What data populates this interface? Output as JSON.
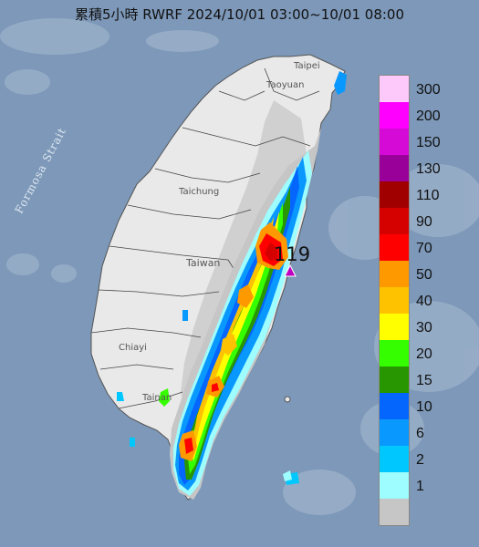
{
  "title": "累積5小時 RWRF 2024/10/01 03:00~10/01 08:00",
  "sea_label": "Formosa Strait",
  "max_value_label": "119",
  "places": [
    {
      "name": "Taipei",
      "label": "Taipei"
    },
    {
      "name": "Taoyuan",
      "label": "Taoyuan"
    },
    {
      "name": "Taichung",
      "label": "Taichung"
    },
    {
      "name": "Taiwan",
      "label": "Taiwan"
    },
    {
      "name": "Chiayi",
      "label": "Chiayi"
    },
    {
      "name": "Tainan",
      "label": "Tainan"
    }
  ],
  "legend": {
    "levels": [
      "300",
      "200",
      "150",
      "130",
      "110",
      "90",
      "70",
      "50",
      "40",
      "30",
      "20",
      "15",
      "10",
      "6",
      "2",
      "1"
    ],
    "colors": [
      "#fdc9fb",
      "#fe01fe",
      "#d50ad6",
      "#990099",
      "#a10000",
      "#d50000",
      "#ff0000",
      "#fe9900",
      "#fec200",
      "#ffff00",
      "#35fe00",
      "#289600",
      "#0566fe",
      "#0999fe",
      "#00c8fe",
      "#9efdfe",
      "#c6c6c6"
    ]
  },
  "colors": {
    "sea": "#7d98b8",
    "land": "#e9e9e9",
    "max_marker": "#c000c0"
  }
}
